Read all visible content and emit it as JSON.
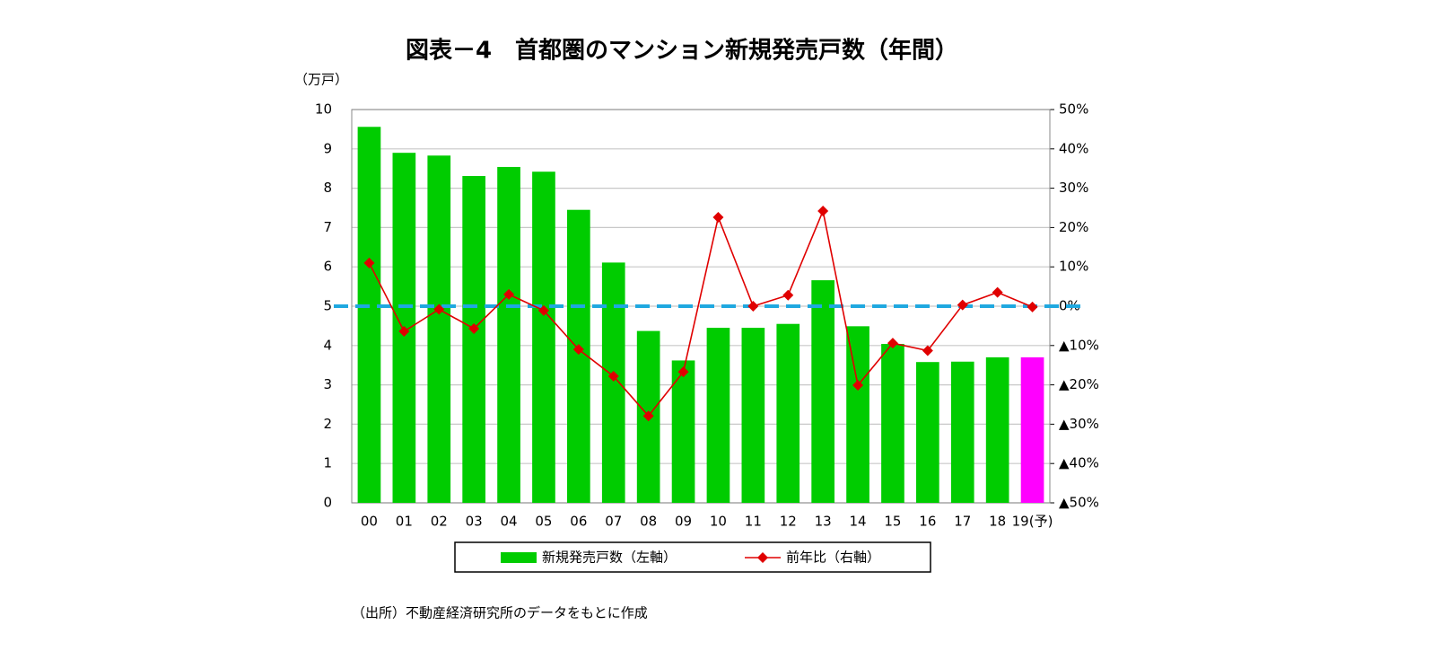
{
  "chart_data": {
    "type": "bar-line",
    "title": "図表－4　首都圏のマンション新規発売戸数（年間）",
    "y_label": "（万戸）",
    "source": "（出所）不動産経済研究所のデータをもとに作成",
    "categories": [
      "00",
      "01",
      "02",
      "03",
      "04",
      "05",
      "06",
      "07",
      "08",
      "09",
      "10",
      "11",
      "12",
      "13",
      "14",
      "15",
      "16",
      "17",
      "18",
      "19(予)"
    ],
    "series": [
      {
        "name": "新規発売戸数（左軸）",
        "type": "bar",
        "color": "#00cc00",
        "colors": [
          "#00cc00",
          "#00cc00",
          "#00cc00",
          "#00cc00",
          "#00cc00",
          "#00cc00",
          "#00cc00",
          "#00cc00",
          "#00cc00",
          "#00cc00",
          "#00cc00",
          "#00cc00",
          "#00cc00",
          "#00cc00",
          "#00cc00",
          "#00cc00",
          "#00cc00",
          "#00cc00",
          "#00cc00",
          "#ff00ff"
        ],
        "values": [
          9.56,
          8.9,
          8.83,
          8.31,
          8.54,
          8.42,
          7.45,
          6.11,
          4.37,
          3.62,
          4.45,
          4.45,
          4.55,
          5.66,
          4.49,
          4.04,
          3.58,
          3.59,
          3.7,
          3.7
        ]
      },
      {
        "name": "前年比（右軸）",
        "type": "line",
        "axis": "y2",
        "color": "#e00000",
        "values": [
          11.0,
          -6.4,
          -0.8,
          -5.7,
          3.0,
          -1.1,
          -11.0,
          -17.8,
          -27.9,
          -16.7,
          22.6,
          0.0,
          2.8,
          24.2,
          -20.1,
          -9.4,
          -11.3,
          0.3,
          3.5,
          -0.2
        ]
      }
    ],
    "ylim": [
      0,
      10
    ],
    "yticks": [
      0,
      1,
      2,
      3,
      4,
      5,
      6,
      7,
      8,
      9,
      10
    ],
    "y2lim": [
      -50,
      50
    ],
    "y2ticks": [
      {
        "value": -50,
        "label": "▲50%"
      },
      {
        "value": -40,
        "label": "▲40%"
      },
      {
        "value": -30,
        "label": "▲30%"
      },
      {
        "value": -20,
        "label": "▲20%"
      },
      {
        "value": -10,
        "label": "▲10%"
      },
      {
        "value": 0,
        "label": "0%"
      },
      {
        "value": 10,
        "label": "10%"
      },
      {
        "value": 20,
        "label": "20%"
      },
      {
        "value": 30,
        "label": "30%"
      },
      {
        "value": 40,
        "label": "40%"
      },
      {
        "value": 50,
        "label": "50%"
      }
    ],
    "reference_line": {
      "axis": "y2",
      "value": 0,
      "color": "#1fa8e0"
    },
    "grid": true,
    "legend": "bottom"
  }
}
